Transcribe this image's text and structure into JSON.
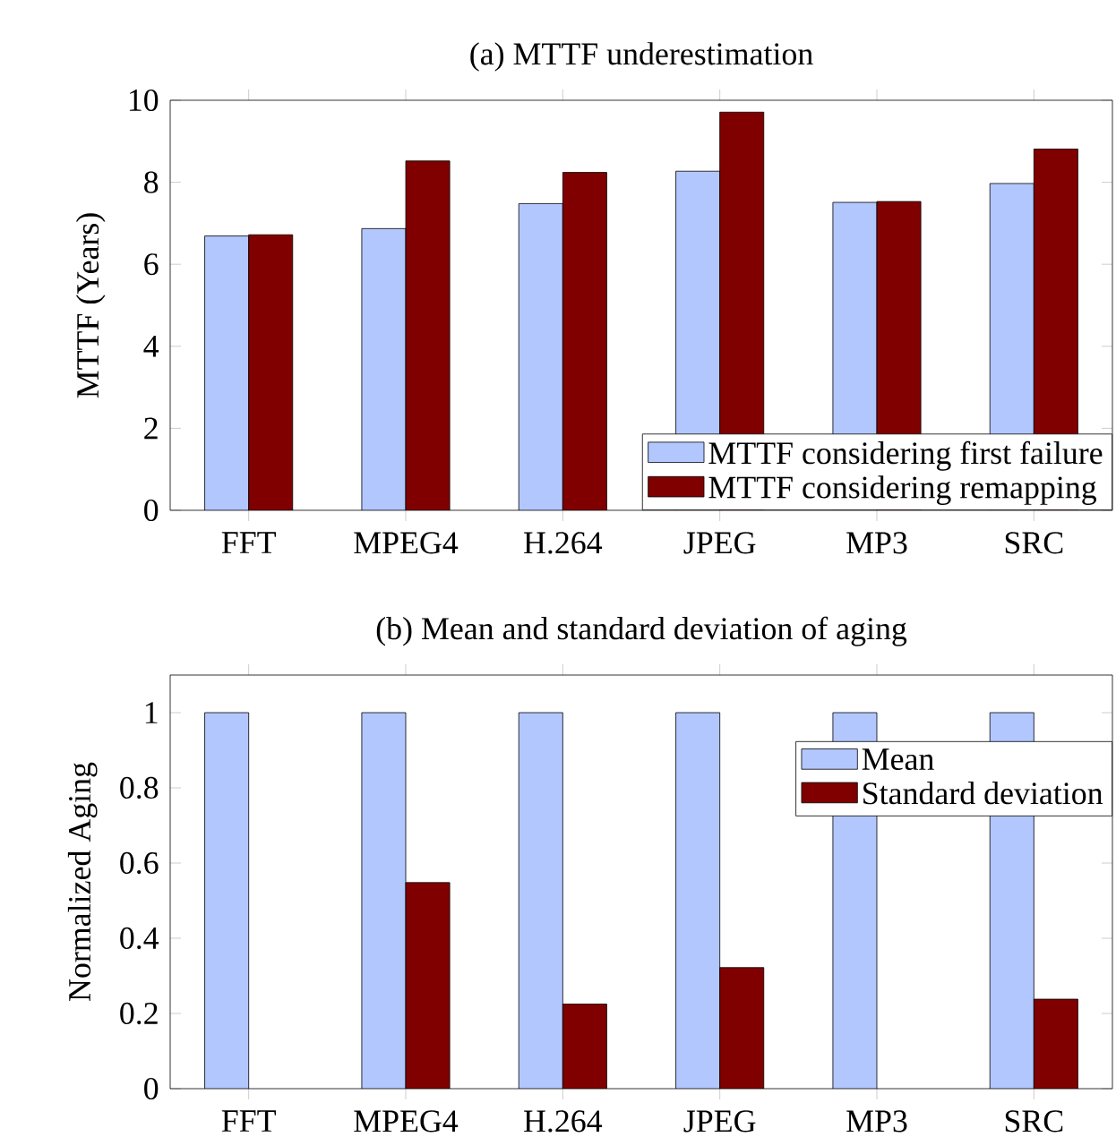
{
  "chart_data": [
    {
      "type": "bar",
      "title": "(a) MTTF underestimation",
      "ylabel": "MTTF (Years)",
      "categories": [
        "FFT",
        "MPEG4",
        "H.264",
        "JPEG",
        "MP3",
        "SRC"
      ],
      "series": [
        {
          "name": "MTTF considering first failure",
          "color": "#b3c7ff",
          "values": [
            6.69,
            6.87,
            7.48,
            8.27,
            7.51,
            7.97
          ]
        },
        {
          "name": "MTTF considering remapping",
          "color": "#800000",
          "values": [
            6.72,
            8.52,
            8.24,
            9.71,
            7.53,
            8.81
          ]
        }
      ],
      "ylim": [
        0,
        10
      ],
      "yticks": [
        0,
        2,
        4,
        6,
        8,
        10
      ],
      "legend": "bottom right"
    },
    {
      "type": "bar",
      "title": "(b) Mean and standard deviation of aging",
      "ylabel": "Normalized Aging",
      "categories": [
        "FFT",
        "MPEG4",
        "H.264",
        "JPEG",
        "MP3",
        "SRC"
      ],
      "series": [
        {
          "name": "Mean",
          "color": "#b3c7ff",
          "values": [
            1,
            1,
            1,
            1,
            1,
            1
          ]
        },
        {
          "name": "Standard deviation",
          "color": "#800000",
          "values": [
            null,
            0.548,
            0.225,
            0.322,
            null,
            0.238
          ]
        }
      ],
      "ylim": [
        0,
        1.1
      ],
      "yticks": [
        0,
        0.2,
        0.4,
        0.6,
        0.8,
        1
      ],
      "legend": "top right"
    }
  ]
}
